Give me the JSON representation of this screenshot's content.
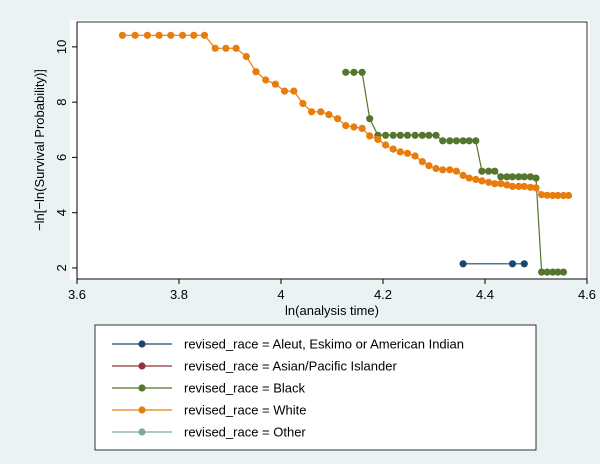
{
  "chart_data": {
    "type": "line",
    "title": "",
    "xlabel": "ln(analysis time)",
    "ylabel": "−ln[−ln(Survival Probability)]",
    "xlim": [
      3.6,
      4.6
    ],
    "ylim": [
      1.6,
      10.9
    ],
    "xticks": [
      3.6,
      3.8,
      4,
      4.2,
      4.4,
      4.6
    ],
    "xtick_labels": [
      "3.6",
      "3.8",
      "4",
      "4.2",
      "4.4",
      "4.6"
    ],
    "yticks": [
      2,
      4,
      6,
      8,
      10
    ],
    "ytick_labels": [
      "2",
      "4",
      "6",
      "8",
      "10"
    ],
    "grid": false,
    "legend_position": "bottom",
    "series": [
      {
        "name": "revised_race = Aleut, Eskimo or American Indian",
        "color": "#1a476f",
        "x": [
          4.357,
          4.454,
          4.477
        ],
        "y": [
          2.15,
          2.15,
          2.15
        ]
      },
      {
        "name": "revised_race = Asian/Pacific Islander",
        "color": "#90353b",
        "x": [],
        "y": []
      },
      {
        "name": "revised_race = Black",
        "color": "#55752f",
        "x": [
          4.127,
          4.143,
          4.159,
          4.174,
          4.19,
          4.205,
          4.22,
          4.234,
          4.248,
          4.263,
          4.277,
          4.29,
          4.304,
          4.317,
          4.331,
          4.344,
          4.357,
          4.369,
          4.382,
          4.394,
          4.407,
          4.419,
          4.431,
          4.443,
          4.454,
          4.466,
          4.477,
          4.489,
          4.5,
          4.511,
          4.522,
          4.533,
          4.543,
          4.554
        ],
        "y": [
          9.08,
          9.08,
          9.08,
          7.4,
          6.8,
          6.8,
          6.8,
          6.8,
          6.8,
          6.8,
          6.8,
          6.8,
          6.8,
          6.6,
          6.6,
          6.6,
          6.6,
          6.6,
          6.6,
          5.5,
          5.5,
          5.5,
          5.3,
          5.3,
          5.3,
          5.3,
          5.3,
          5.3,
          5.25,
          1.85,
          1.85,
          1.85,
          1.85,
          1.85
        ]
      },
      {
        "name": "revised_race = White",
        "color": "#e87d0e",
        "x": [
          3.689,
          3.714,
          3.738,
          3.761,
          3.784,
          3.807,
          3.829,
          3.85,
          3.871,
          3.892,
          3.912,
          3.932,
          3.951,
          3.97,
          3.989,
          4.007,
          4.025,
          4.043,
          4.06,
          4.078,
          4.094,
          4.111,
          4.127,
          4.143,
          4.159,
          4.174,
          4.19,
          4.205,
          4.22,
          4.234,
          4.248,
          4.263,
          4.277,
          4.29,
          4.304,
          4.317,
          4.331,
          4.344,
          4.357,
          4.369,
          4.382,
          4.394,
          4.407,
          4.419,
          4.431,
          4.443,
          4.454,
          4.466,
          4.477,
          4.489,
          4.5,
          4.511,
          4.522,
          4.533,
          4.543,
          4.554,
          4.564
        ],
        "y": [
          10.42,
          10.42,
          10.42,
          10.42,
          10.42,
          10.42,
          10.42,
          10.42,
          9.95,
          9.95,
          9.95,
          9.65,
          9.1,
          8.8,
          8.65,
          8.4,
          8.4,
          7.95,
          7.65,
          7.65,
          7.55,
          7.4,
          7.15,
          7.1,
          7.05,
          6.78,
          6.65,
          6.45,
          6.3,
          6.2,
          6.15,
          6.05,
          5.85,
          5.7,
          5.6,
          5.55,
          5.55,
          5.5,
          5.35,
          5.25,
          5.2,
          5.15,
          5.1,
          5.05,
          5.05,
          5.0,
          4.95,
          4.95,
          4.95,
          4.92,
          4.9,
          4.65,
          4.63,
          4.62,
          4.62,
          4.62,
          4.62
        ]
      },
      {
        "name": "revised_race = Other",
        "color": "#7ea8a0",
        "x": [],
        "y": []
      }
    ]
  }
}
